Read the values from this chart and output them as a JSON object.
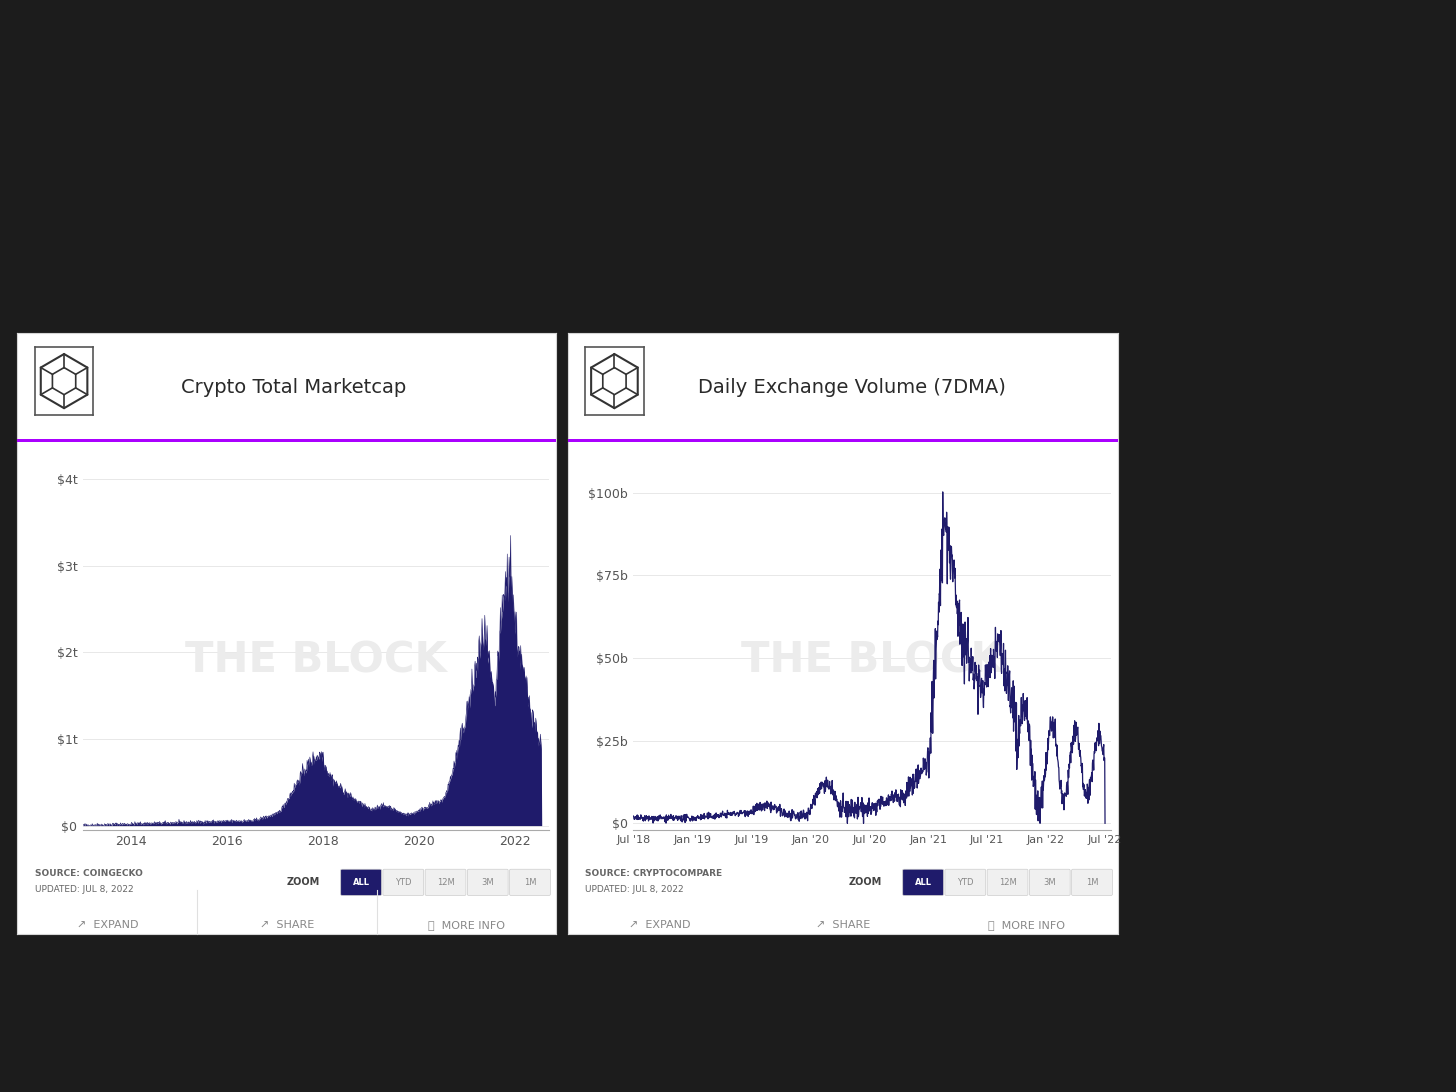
{
  "chart1_title": "Crypto Total Marketcap",
  "chart2_title": "Daily Exchange Volume (7DMA)",
  "chart1_source": "SOURCE: COINGECKO",
  "chart1_updated": "UPDATED: JUL 8, 2022",
  "chart2_source": "SOURCE: CRYPTOCOMPARE",
  "chart2_updated": "UPDATED: JUL 8, 2022",
  "chart1_yticks": [
    "$0",
    "$1t",
    "$2t",
    "$3t",
    "$4t"
  ],
  "chart1_xticks": [
    "2014",
    "2016",
    "2018",
    "2020",
    "2022"
  ],
  "chart2_yticks": [
    "$0",
    "$25b",
    "$50b",
    "$75b",
    "$100b"
  ],
  "chart2_xticks": [
    "Jul '18",
    "Jan '19",
    "Jul '19",
    "Jan '20",
    "Jul '20",
    "Jan '21",
    "Jul '21",
    "Jan '22",
    "Jul '22"
  ],
  "fill_color": "#1f1b6b",
  "line_color": "#1f1b6b",
  "purple_line_color": "#aa00ff",
  "white": "#ffffff",
  "light_gray_bg": "#f5f5f5",
  "grid_color": "#e8e8e8",
  "watermark_color": "#ececec",
  "title_color": "#2a2a2a",
  "source_color": "#666666",
  "tick_color": "#555555",
  "bottom_btn_color": "#888888",
  "outer_bg": "#1c1c1c",
  "card_border": "#e0e0e0",
  "zoom_label_color": "#444444",
  "zoom_active_bg": "#1f1b6b",
  "zoom_inactive_bg": "#f0f0f0",
  "zoom_active_text": "#ffffff",
  "zoom_inactive_text": "#888888",
  "zoom_buttons": [
    "ALL",
    "YTD",
    "12M",
    "3M",
    "1M"
  ]
}
